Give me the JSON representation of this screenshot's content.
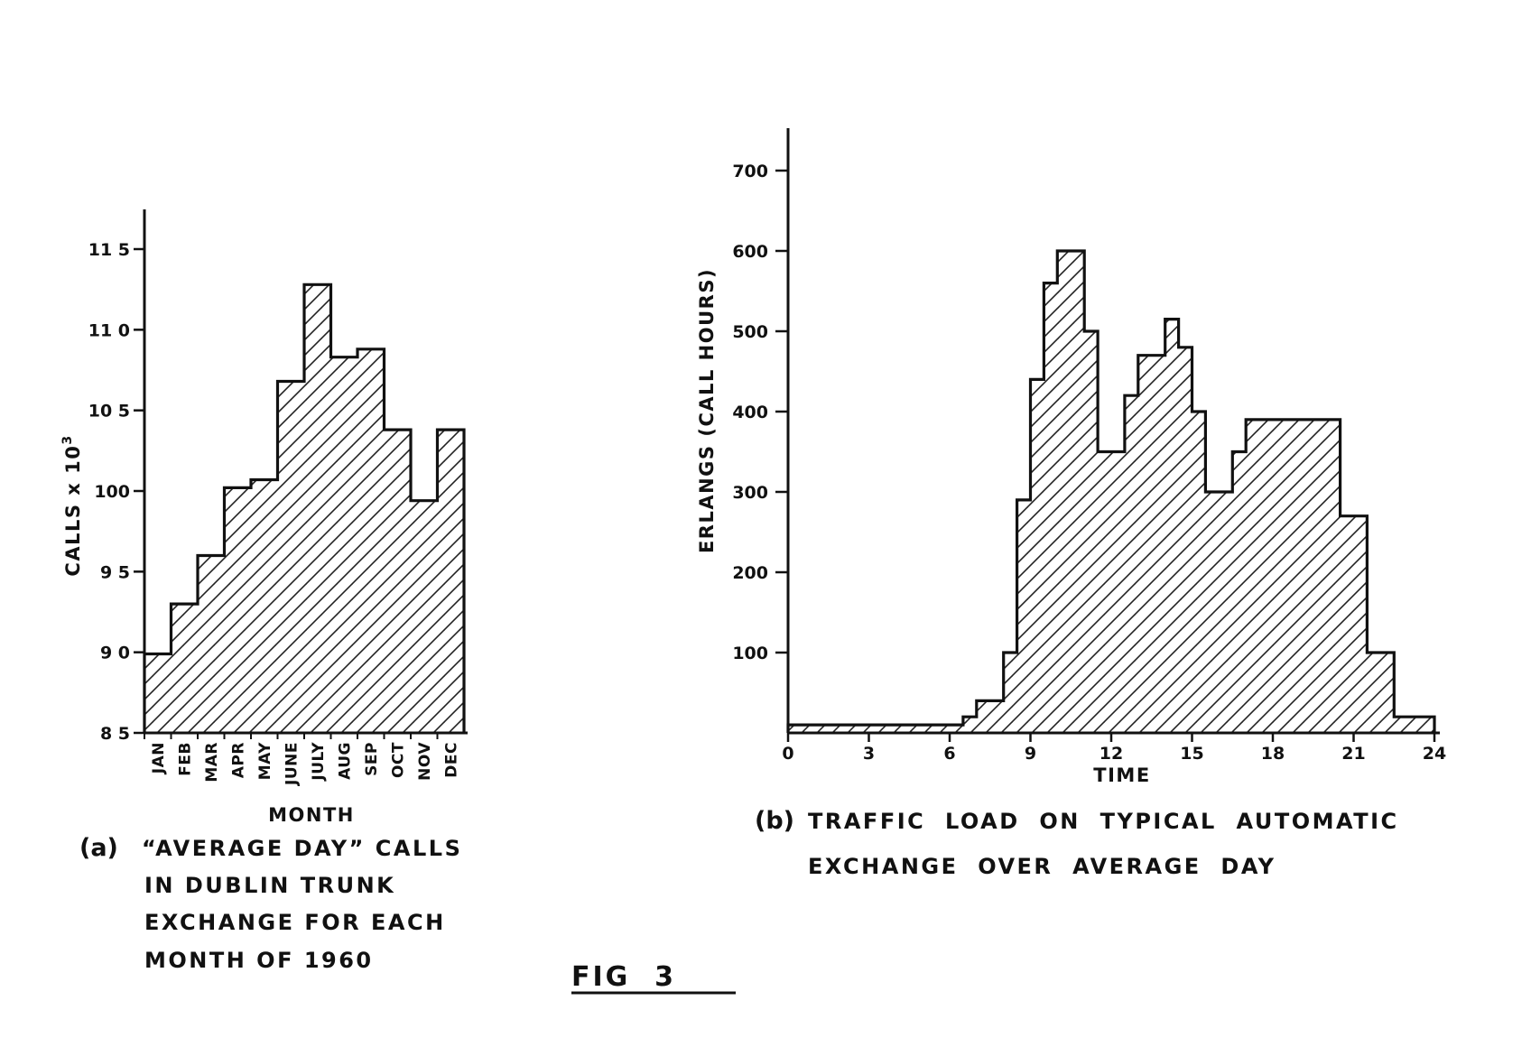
{
  "figure": {
    "label": "FIG  3",
    "underline_suffix": "_"
  },
  "chart_data": [
    {
      "type": "bar",
      "style": "step-histogram, diagonal hatching",
      "title": "",
      "ylabel": "CALLS x 10",
      "ylabel_exponent": "3",
      "xlabel": "MONTH",
      "ylim": [
        85,
        117
      ],
      "yticks": [
        85,
        90,
        95,
        100,
        105,
        110,
        115
      ],
      "ytick_labels": [
        "8 5",
        "9 0",
        "9 5",
        "100",
        "10 5",
        "11 0",
        "11 5"
      ],
      "categories": [
        "JAN",
        "FEB",
        "MAR",
        "APR",
        "MAY",
        "JUNE",
        "JULY",
        "AUG",
        "SEP",
        "OCT",
        "NOV",
        "DEC"
      ],
      "values": [
        89.9,
        93.0,
        96.0,
        100.2,
        100.7,
        106.8,
        112.8,
        108.3,
        108.8,
        103.8,
        99.4,
        103.8
      ],
      "grid": false,
      "caption": {
        "marker": "(a)",
        "lines": [
          "“AVERAGE DAY” CALLS",
          "IN DUBLIN TRUNK",
          "EXCHANGE FOR EACH",
          "MONTH OF 1960"
        ]
      }
    },
    {
      "type": "bar",
      "style": "step-histogram, diagonal hatching",
      "title": "",
      "ylabel": "ERLANGS (CALL HOURS)",
      "xlabel": "TIME",
      "xlim": [
        0,
        24
      ],
      "ylim": [
        0,
        760
      ],
      "xticks": [
        0,
        3,
        6,
        9,
        12,
        15,
        18,
        21,
        24
      ],
      "yticks": [
        100,
        200,
        300,
        400,
        500,
        600,
        700
      ],
      "x": [
        0,
        0.5,
        1,
        1.5,
        2,
        2.5,
        3,
        3.5,
        4,
        4.5,
        5,
        5.5,
        6,
        6.5,
        7,
        7.5,
        8,
        8.5,
        9,
        9.5,
        10,
        10.5,
        11,
        11.5,
        12,
        12.5,
        13,
        13.5,
        14,
        14.5,
        15,
        15.5,
        16,
        16.5,
        17,
        17.5,
        18,
        18.5,
        19,
        19.5,
        20,
        20.5,
        21,
        21.5,
        22,
        22.5,
        23,
        23.5
      ],
      "values": [
        10,
        10,
        10,
        10,
        10,
        10,
        10,
        10,
        10,
        10,
        10,
        10,
        10,
        20,
        40,
        40,
        100,
        290,
        440,
        560,
        600,
        600,
        500,
        350,
        350,
        420,
        470,
        470,
        515,
        480,
        400,
        300,
        300,
        350,
        390,
        390,
        390,
        390,
        390,
        390,
        390,
        270,
        270,
        100,
        100,
        20,
        20,
        20
      ],
      "grid": false,
      "caption": {
        "marker": "(b)",
        "lines": [
          "TRAFFIC  LOAD  ON  TYPICAL  AUTOMATIC",
          "EXCHANGE  OVER  AVERAGE  DAY"
        ]
      }
    }
  ]
}
